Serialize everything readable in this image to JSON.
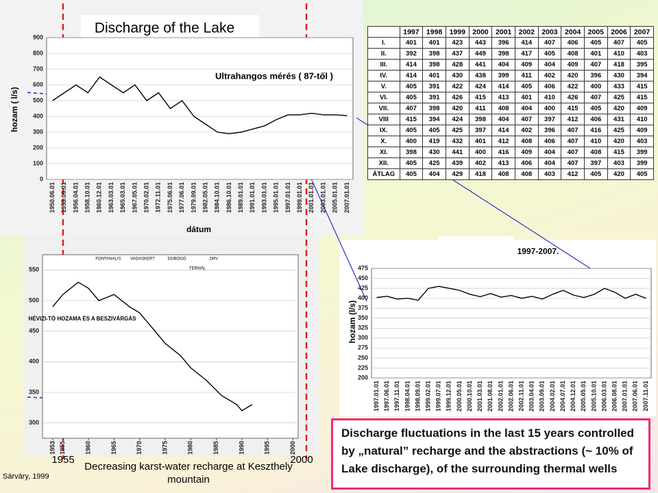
{
  "title": "Discharge of the Lake",
  "chart_data": [
    {
      "type": "line",
      "ylabel": "hozam ( l/s)",
      "xlabel": "dátum",
      "annotation": "Ultrahangos mérés ( 87-től )",
      "categories": [
        "1950.06.01",
        "1953.09.01",
        "1956.04.01",
        "1958.10.01",
        "1960.12.01",
        "1963.03.01",
        "1965.03.01",
        "1967.05.01",
        "1970.02.01",
        "1972.11.01",
        "1975.06.01",
        "1977.06.01",
        "1979.09.01",
        "1982.05.01",
        "1984.10.01",
        "1986.10.01",
        "1989.01.01",
        "1991.01.01",
        "1993.01.01",
        "1995.01.01",
        "1997.01.01",
        "1999.01.01",
        "2001.01.01",
        "2003.01.01",
        "2005.01.01",
        "2007.01.01"
      ],
      "series": [
        {
          "color": "#000000",
          "values": [
            500,
            550,
            600,
            550,
            650,
            600,
            550,
            600,
            500,
            550,
            450,
            500,
            400,
            350,
            300,
            290,
            300,
            320,
            340,
            380,
            410,
            410,
            420,
            410,
            410,
            405
          ]
        }
      ],
      "ylim": [
        0,
        900
      ],
      "yticks": [
        0,
        100,
        200,
        300,
        400,
        500,
        600,
        700,
        800,
        900
      ],
      "grid": true
    },
    {
      "type": "line",
      "title": "1997-2007.",
      "ylabel": "hozam (l/s)",
      "categories": [
        "1997.01.01",
        "1997.06.01",
        "1997.11.01",
        "1998.04.01",
        "1998.09.01",
        "1999.02.01",
        "1999.07.01",
        "1999.12.01",
        "2000.05.01",
        "2000.10.01",
        "2001.03.01",
        "2001.08.01",
        "2002.01.01",
        "2002.06.01",
        "2002.11.01",
        "2003.04.01",
        "2003.09.01",
        "2004.02.01",
        "2004.07.01",
        "2004.12.01",
        "2005.05.01",
        "2005.10.01",
        "2006.03.01",
        "2006.08.01",
        "2007.01.01",
        "2007.06.01",
        "2007.11.01"
      ],
      "series": [
        {
          "color": "#000000",
          "values": [
            402,
            405,
            398,
            400,
            395,
            425,
            430,
            425,
            420,
            410,
            404,
            412,
            403,
            407,
            400,
            405,
            398,
            410,
            420,
            408,
            402,
            410,
            425,
            415,
            400,
            410,
            400
          ]
        }
      ],
      "ylim": [
        200,
        475
      ],
      "yticks": [
        200,
        225,
        250,
        275,
        300,
        325,
        350,
        375,
        400,
        425,
        450,
        475
      ],
      "grid": true
    },
    {
      "type": "line",
      "title": "HÉVIZI-TÓ HOZAMA ÉS A BESZIVÁRGÁS",
      "annotations": [
        "FONTANALIS",
        "VADASKERT",
        "DOBOGÓ",
        "TERMÁL",
        "DRV"
      ],
      "x": [
        1953,
        1955,
        1958,
        1960,
        1962,
        1965,
        1968,
        1970,
        1972,
        1975,
        1978,
        1980,
        1983,
        1986,
        1989,
        1990,
        1992
      ],
      "series": [
        {
          "color": "#000000",
          "values": [
            490,
            510,
            530,
            520,
            500,
            510,
            490,
            480,
            460,
            430,
            410,
            390,
            370,
            345,
            330,
            320,
            330
          ]
        }
      ],
      "xlim": [
        1951,
        2001
      ],
      "xticks": [
        1953,
        1955,
        1960,
        1965,
        1970,
        1975,
        1980,
        1985,
        1990,
        1995,
        2000
      ],
      "ylim": [
        275,
        575
      ],
      "yticks": [
        300,
        350,
        400,
        450,
        500,
        550
      ],
      "grid": true
    }
  ],
  "table": {
    "header": [
      "1997",
      "1998",
      "1999",
      "2000",
      "2001",
      "2002",
      "2003",
      "2004",
      "2005",
      "2006",
      "2007"
    ],
    "rows": [
      [
        "I.",
        401,
        401,
        423,
        443,
        396,
        414,
        407,
        406,
        405,
        407,
        405
      ],
      [
        "II.",
        392,
        398,
        437,
        449,
        398,
        417,
        405,
        408,
        401,
        410,
        403
      ],
      [
        "III.",
        414,
        398,
        428,
        441,
        404,
        409,
        404,
        409,
        407,
        418,
        395
      ],
      [
        "IV.",
        414,
        401,
        430,
        438,
        399,
        411,
        402,
        420,
        396,
        430,
        394
      ],
      [
        "V.",
        405,
        391,
        422,
        424,
        414,
        405,
        406,
        422,
        400,
        433,
        415
      ],
      [
        "VI.",
        405,
        391,
        426,
        415,
        413,
        401,
        410,
        426,
        407,
        425,
        415
      ],
      [
        "VII.",
        407,
        398,
        420,
        411,
        408,
        404,
        400,
        415,
        405,
        420,
        409
      ],
      [
        "VIII",
        415,
        394,
        424,
        398,
        404,
        407,
        397,
        412,
        406,
        431,
        410
      ],
      [
        "IX.",
        405,
        405,
        425,
        397,
        414,
        402,
        396,
        407,
        416,
        425,
        409
      ],
      [
        "X.",
        400,
        419,
        432,
        401,
        412,
        408,
        406,
        407,
        410,
        420,
        403
      ],
      [
        "XI.",
        398,
        430,
        441,
        400,
        416,
        409,
        404,
        407,
        408,
        415,
        399
      ],
      [
        "XII.",
        405,
        425,
        439,
        402,
        413,
        406,
        404,
        407,
        397,
        403,
        399
      ],
      [
        "ÁTLAG",
        405,
        404,
        429,
        418,
        408,
        408,
        403,
        412,
        405,
        420,
        405
      ]
    ]
  },
  "markers": [
    "1955",
    "2000"
  ],
  "source": "Sárváry, 1999",
  "left_caption": "Decreasing karst-water recharge at Keszthely mountain",
  "caption": "Discharge fluctuations in the last 15 years controlled by „natural” recharge and the abstractions (~ 10% of Lake discharge), of the surrounding thermal wells"
}
